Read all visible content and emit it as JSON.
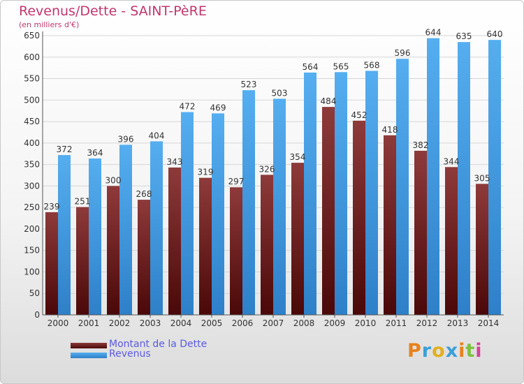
{
  "header": {
    "title": "Revenus/Dette - SAINT-PèRE",
    "subtitle": "(en milliers d'€)"
  },
  "legend": {
    "items": [
      {
        "label": "Montant de la Dette",
        "color": "#7a1a1a"
      },
      {
        "label": "Revenus",
        "color": "#3e9ee6"
      }
    ]
  },
  "brand": {
    "text": "Proxiti",
    "colors": [
      "#e8821e",
      "#3aa0d8",
      "#e0b020",
      "#3aa0d8",
      "#e8821e",
      "#7cc040",
      "#d8409a"
    ]
  },
  "chart_data": {
    "type": "bar",
    "categories": [
      "2000",
      "2001",
      "2002",
      "2003",
      "2004",
      "2005",
      "2006",
      "2007",
      "2008",
      "2009",
      "2010",
      "2011",
      "2012",
      "2013",
      "2014"
    ],
    "series": [
      {
        "name": "Montant de la Dette",
        "values": [
          239,
          251,
          300,
          268,
          343,
          319,
          297,
          326,
          354,
          484,
          452,
          418,
          382,
          344,
          305
        ]
      },
      {
        "name": "Revenus",
        "values": [
          372,
          364,
          396,
          404,
          472,
          469,
          523,
          503,
          564,
          565,
          568,
          596,
          644,
          635,
          640
        ]
      }
    ],
    "ylim": [
      0,
      650
    ],
    "yticks": [
      0,
      50,
      100,
      150,
      200,
      250,
      300,
      350,
      400,
      450,
      500,
      550,
      600,
      650
    ],
    "grid": true
  }
}
